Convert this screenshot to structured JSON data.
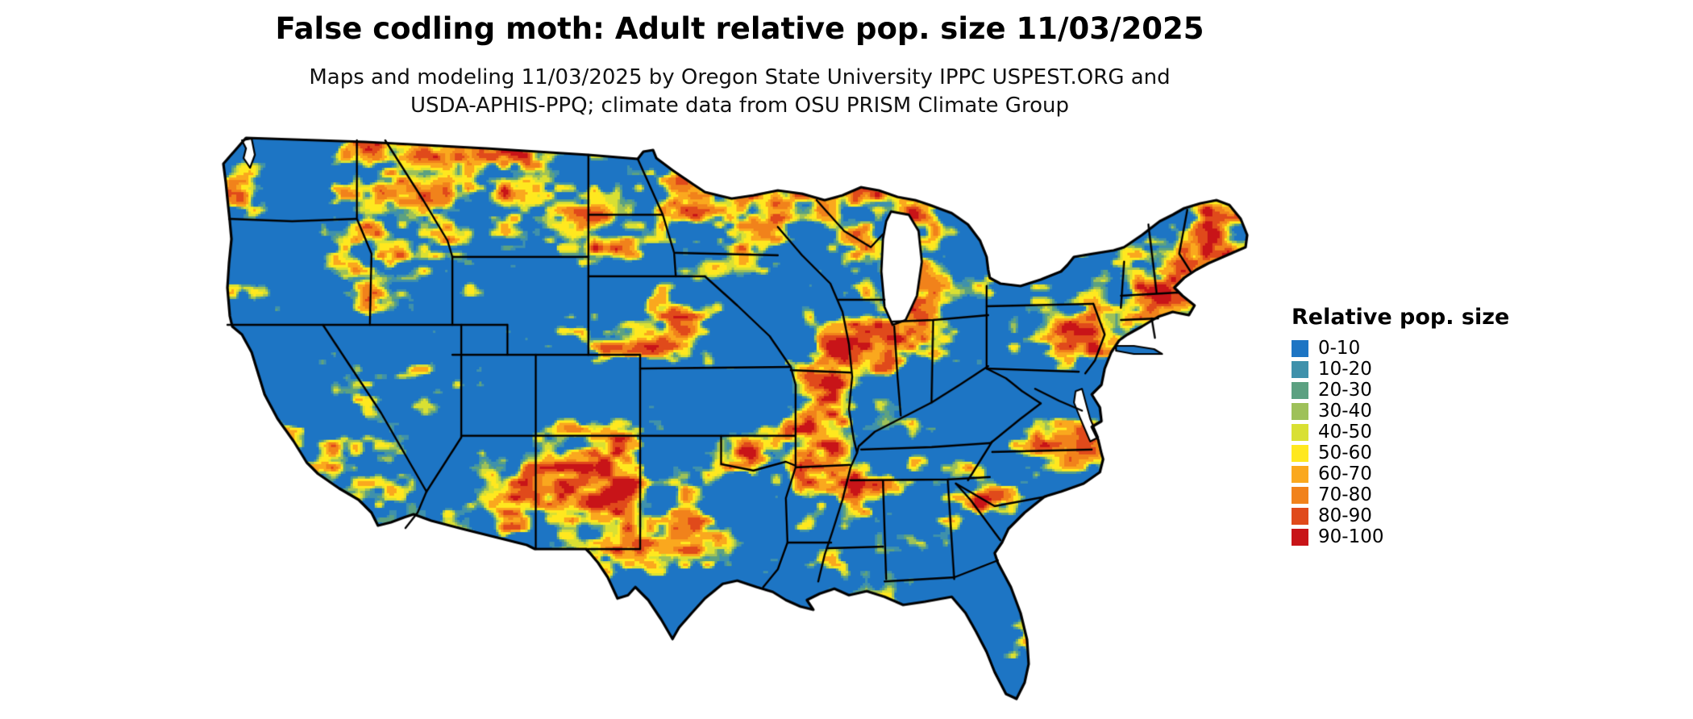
{
  "header": {
    "title": "False codling moth: Adult relative pop. size 11/03/2025",
    "subtitle_line1": "Maps and modeling 11/03/2025 by Oregon State University IPPC USPEST.ORG and",
    "subtitle_line2": "USDA-APHIS-PPQ; climate data from OSU PRISM Climate Group"
  },
  "legend": {
    "title": "Relative pop. size",
    "items": [
      {
        "label": "0-10",
        "color": "#1d75c4"
      },
      {
        "label": "10-20",
        "color": "#3f91ab"
      },
      {
        "label": "20-30",
        "color": "#5ca181"
      },
      {
        "label": "30-40",
        "color": "#9ec159"
      },
      {
        "label": "40-50",
        "color": "#d9e033"
      },
      {
        "label": "50-60",
        "color": "#ffe81f"
      },
      {
        "label": "60-70",
        "color": "#faa81e"
      },
      {
        "label": "70-80",
        "color": "#f1821b"
      },
      {
        "label": "80-90",
        "color": "#e04a1b"
      },
      {
        "label": "90-100",
        "color": "#c81418"
      }
    ]
  },
  "map": {
    "land_base_color": "#1d75c4",
    "border_color": "#000000",
    "water_color": "#ffffff",
    "background": "#ffffff"
  }
}
